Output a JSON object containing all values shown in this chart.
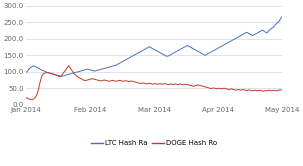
{
  "ylim": [
    0,
    300
  ],
  "yticks": [
    0,
    50,
    100,
    150,
    200,
    250,
    300
  ],
  "ytick_labels": [
    "0.0",
    "50.0",
    "100.0",
    "150.0",
    "200.0",
    "250.0",
    "300.0"
  ],
  "xtick_labels": [
    "Jan 2014",
    "Feb 2014",
    "Mar 2014",
    "Apr 2014",
    "May 2014"
  ],
  "ltc_color": "#4472c4",
  "doge_color": "#c0392b",
  "legend_labels": [
    "LTC Hash Ra",
    "DOGE Hash Ro"
  ],
  "bg_color": "#ffffff",
  "grid_color": "#d8d8d8",
  "font_size": 5.0,
  "ltc_data": [
    97,
    100,
    105,
    110,
    113,
    115,
    117,
    118,
    116,
    114,
    112,
    110,
    108,
    106,
    104,
    103,
    101,
    100,
    98,
    97,
    96,
    95,
    94,
    93,
    92,
    91,
    90,
    89,
    88,
    87,
    86,
    87,
    88,
    89,
    90,
    91,
    92,
    93,
    94,
    95,
    96,
    97,
    98,
    99,
    100,
    101,
    102,
    103,
    104,
    105,
    106,
    107,
    108,
    107,
    106,
    105,
    104,
    103,
    102,
    103,
    104,
    105,
    106,
    107,
    108,
    109,
    110,
    111,
    112,
    113,
    114,
    115,
    116,
    117,
    118,
    119,
    120,
    122,
    124,
    126,
    128,
    130,
    132,
    134,
    136,
    138,
    140,
    142,
    144,
    146,
    148,
    150,
    152,
    154,
    156,
    158,
    160,
    162,
    164,
    166,
    168,
    170,
    172,
    174,
    176,
    174,
    172,
    170,
    168,
    166,
    164,
    162,
    160,
    158,
    156,
    154,
    152,
    150,
    148,
    147,
    148,
    150,
    152,
    154,
    156,
    158,
    160,
    162,
    164,
    166,
    168,
    170,
    172,
    174,
    176,
    178,
    180,
    178,
    176,
    174,
    172,
    170,
    168,
    166,
    164,
    162,
    160,
    158,
    156,
    154,
    152,
    150,
    152,
    154,
    156,
    158,
    160,
    162,
    164,
    166,
    168,
    170,
    172,
    174,
    176,
    178,
    180,
    182,
    184,
    186,
    188,
    190,
    192,
    194,
    196,
    198,
    200,
    202,
    204,
    206,
    208,
    210,
    212,
    214,
    216,
    218,
    220,
    218,
    216,
    214,
    212,
    210,
    212,
    214,
    216,
    218,
    220,
    222,
    224,
    226,
    225,
    222,
    220,
    218,
    222,
    226,
    230,
    232,
    234,
    238,
    242,
    246,
    250,
    252,
    258,
    264,
    268
  ],
  "doge_data": [
    22,
    20,
    18,
    17,
    16,
    15,
    16,
    18,
    22,
    28,
    38,
    52,
    68,
    82,
    90,
    94,
    96,
    97,
    97,
    97,
    96,
    95,
    94,
    93,
    92,
    90,
    89,
    88,
    86,
    85,
    88,
    93,
    98,
    103,
    108,
    113,
    118,
    113,
    108,
    103,
    98,
    93,
    90,
    87,
    84,
    82,
    80,
    78,
    76,
    74,
    73,
    74,
    75,
    76,
    77,
    78,
    79,
    78,
    77,
    76,
    75,
    74,
    73,
    72,
    73,
    74,
    75,
    74,
    73,
    72,
    71,
    72,
    73,
    74,
    73,
    72,
    71,
    72,
    73,
    74,
    73,
    72,
    71,
    72,
    73,
    72,
    71,
    70,
    71,
    72,
    71,
    70,
    69,
    68,
    67,
    66,
    65,
    64,
    65,
    66,
    65,
    64,
    63,
    64,
    65,
    64,
    63,
    62,
    63,
    64,
    63,
    62,
    63,
    64,
    63,
    62,
    63,
    64,
    63,
    62,
    61,
    62,
    63,
    62,
    61,
    62,
    63,
    62,
    61,
    62,
    63,
    62,
    61,
    60,
    61,
    62,
    61,
    60,
    59,
    58,
    57,
    56,
    57,
    58,
    59,
    60,
    59,
    58,
    57,
    56,
    55,
    54,
    53,
    52,
    51,
    50,
    49,
    50,
    51,
    50,
    49,
    48,
    49,
    50,
    49,
    48,
    49,
    50,
    49,
    48,
    47,
    46,
    47,
    48,
    47,
    46,
    45,
    44,
    45,
    46,
    45,
    44,
    45,
    46,
    45,
    44,
    43,
    44,
    45,
    44,
    43,
    42,
    43,
    44,
    43,
    42,
    43,
    44,
    43,
    42,
    41,
    42,
    43,
    42,
    43,
    44,
    43,
    42,
    43,
    44,
    43,
    42,
    43,
    44,
    45,
    44,
    45
  ]
}
